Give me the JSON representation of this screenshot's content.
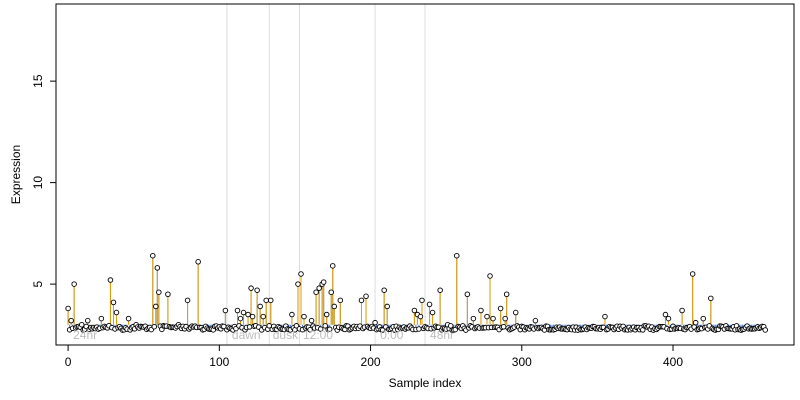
{
  "chart_data": {
    "type": "scatter",
    "title": "",
    "xlabel": "Sample index",
    "ylabel": "Expression",
    "xlim": [
      -8,
      480
    ],
    "ylim": [
      2.0,
      18.8
    ],
    "x_ticks": [
      0,
      100,
      200,
      300,
      400
    ],
    "y_ticks": [
      5,
      10,
      15
    ],
    "grid": false,
    "baseline": 3.0,
    "colors": {
      "stem": "#E69F00",
      "baseline": "#4A7DD8",
      "point_stroke": "#000000",
      "point_fill": "#ffffff",
      "divider": "#dddddd",
      "region_label": "#bdbdbd"
    },
    "dividers": [
      105,
      133,
      153,
      203,
      236
    ],
    "region_labels": [
      {
        "text": "24hr",
        "x": 2
      },
      {
        "text": "dawn",
        "x": 107
      },
      {
        "text": "dusk",
        "x": 134
      },
      {
        "text": "12:00",
        "x": 154
      },
      {
        "text": "0:00",
        "x": 205
      },
      {
        "text": "48hr",
        "x": 238
      }
    ],
    "peaks": [
      [
        0,
        3.8
      ],
      [
        2,
        3.2
      ],
      [
        4,
        5.0
      ],
      [
        6,
        2.9
      ],
      [
        9,
        3.0
      ],
      [
        13,
        3.2
      ],
      [
        16,
        2.8
      ],
      [
        22,
        3.3
      ],
      [
        28,
        5.2
      ],
      [
        30,
        4.1
      ],
      [
        32,
        3.6
      ],
      [
        40,
        3.3
      ],
      [
        45,
        3.0
      ],
      [
        49,
        2.9
      ],
      [
        56,
        6.4
      ],
      [
        58,
        3.9
      ],
      [
        59,
        5.8
      ],
      [
        60,
        4.6
      ],
      [
        66,
        4.5
      ],
      [
        73,
        3.0
      ],
      [
        79,
        4.2
      ],
      [
        86,
        6.1
      ],
      [
        101,
        2.8
      ],
      [
        104,
        3.7
      ],
      [
        112,
        3.7
      ],
      [
        114,
        3.3
      ],
      [
        116,
        3.6
      ],
      [
        119,
        3.5
      ],
      [
        121,
        4.8
      ],
      [
        122,
        3.4
      ],
      [
        125,
        4.7
      ],
      [
        127,
        3.9
      ],
      [
        129,
        3.4
      ],
      [
        131,
        4.2
      ],
      [
        134,
        4.2
      ],
      [
        148,
        3.5
      ],
      [
        152,
        5.0
      ],
      [
        154,
        5.5
      ],
      [
        156,
        3.4
      ],
      [
        161,
        3.2
      ],
      [
        164,
        4.6
      ],
      [
        166,
        4.8
      ],
      [
        168,
        5.0
      ],
      [
        169,
        5.1
      ],
      [
        171,
        3.5
      ],
      [
        174,
        4.6
      ],
      [
        175,
        5.9
      ],
      [
        176,
        3.9
      ],
      [
        180,
        4.2
      ],
      [
        194,
        4.2
      ],
      [
        197,
        4.4
      ],
      [
        203,
        3.1
      ],
      [
        209,
        4.7
      ],
      [
        211,
        3.9
      ],
      [
        229,
        3.7
      ],
      [
        231,
        3.5
      ],
      [
        233,
        3.4
      ],
      [
        234,
        4.2
      ],
      [
        239,
        4.0
      ],
      [
        241,
        3.6
      ],
      [
        246,
        4.7
      ],
      [
        251,
        3.0
      ],
      [
        257,
        6.4
      ],
      [
        264,
        4.5
      ],
      [
        268,
        3.3
      ],
      [
        273,
        3.7
      ],
      [
        277,
        3.4
      ],
      [
        279,
        5.4
      ],
      [
        281,
        3.3
      ],
      [
        286,
        3.8
      ],
      [
        289,
        3.3
      ],
      [
        290,
        4.5
      ],
      [
        296,
        3.6
      ],
      [
        309,
        3.2
      ],
      [
        355,
        3.4
      ],
      [
        395,
        3.5
      ],
      [
        397,
        3.3
      ],
      [
        406,
        3.7
      ],
      [
        413,
        5.5
      ],
      [
        415,
        3.1
      ],
      [
        420,
        3.3
      ],
      [
        425,
        4.3
      ],
      [
        460,
        2.9
      ]
    ]
  }
}
